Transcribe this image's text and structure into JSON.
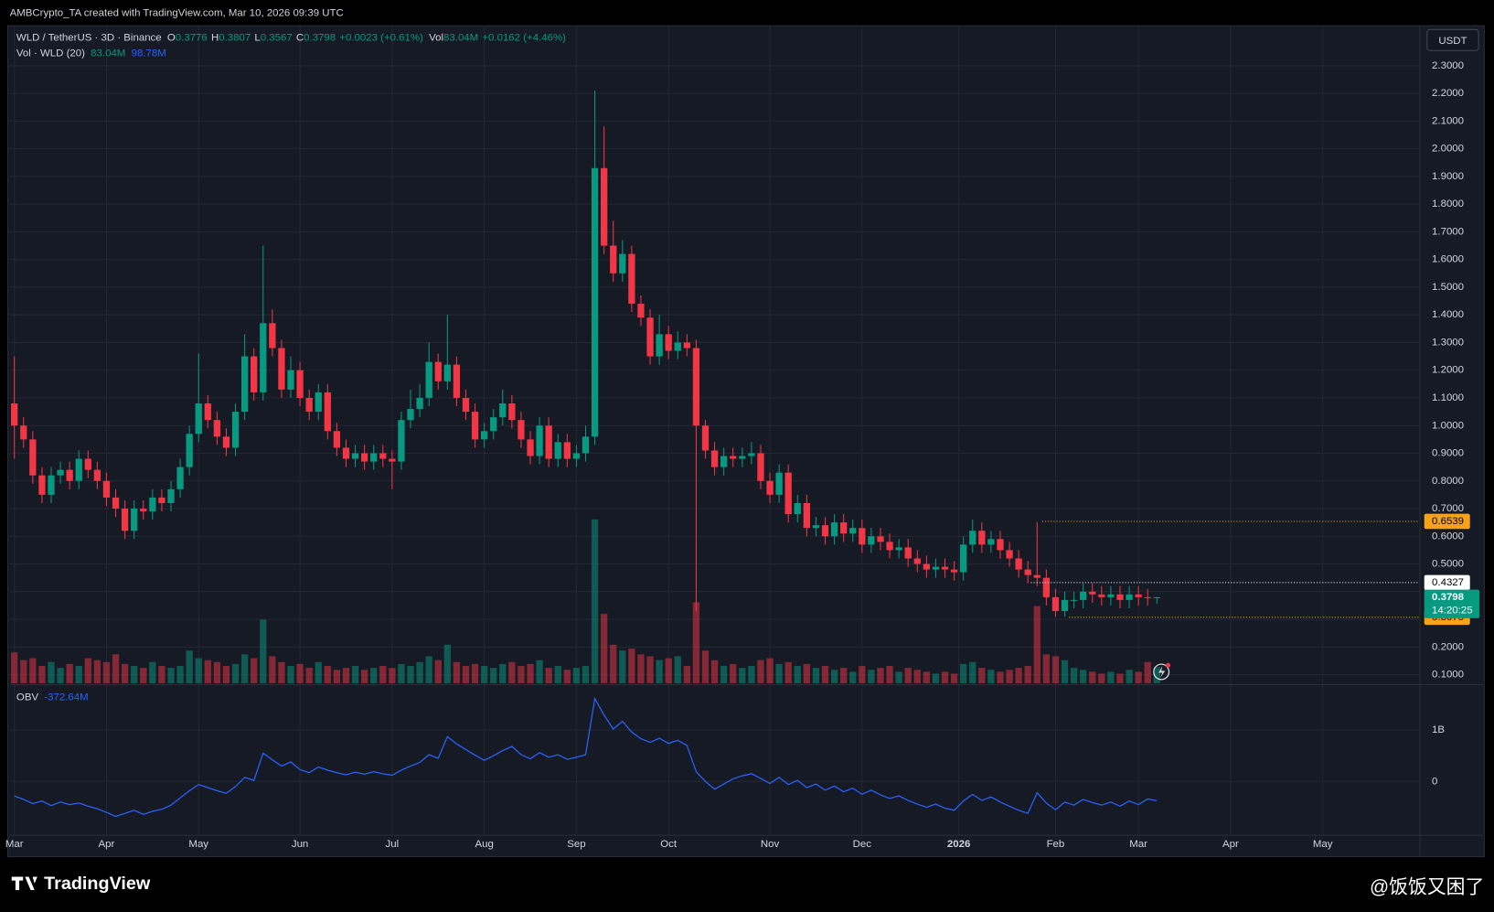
{
  "header": {
    "attribution": "AMBCrypto_TA created with TradingView.com, Mar 10, 2026 09:39 UTC"
  },
  "chart_data": {
    "type": "candlestick",
    "symbol": "WLD / TetherUS · 3D · Binance",
    "currency": "USDT",
    "legend_labels": {
      "open": "O",
      "high": "H",
      "low": "L",
      "close": "C",
      "volume": "Vol"
    },
    "change": "+0.0023 (+0.61%)",
    "volume_label": "83.04M",
    "volume_change": "+0.0162 (+4.46%)",
    "volume_indicator": {
      "name": "Vol · WLD (20)",
      "value_label": "83.04M",
      "ma_label": "98.78M"
    },
    "countdown": "14:20:25",
    "up_color": "#089981",
    "down_color": "#f23645",
    "grid": true,
    "ylim": [
      0.069,
      2.441
    ],
    "yticks": [
      {
        "value": 0.1,
        "label": "0.1000"
      },
      {
        "value": 0.2,
        "label": "0.2000"
      },
      {
        "value": 0.3,
        "label": "0.3000"
      },
      {
        "value": 0.4,
        "label": "0.4000"
      },
      {
        "value": 0.5,
        "label": "0.5000"
      },
      {
        "value": 0.6,
        "label": "0.6000"
      },
      {
        "value": 0.7,
        "label": "0.7000"
      },
      {
        "value": 0.8,
        "label": "0.8000"
      },
      {
        "value": 0.9,
        "label": "0.9000"
      },
      {
        "value": 1.0,
        "label": "1.0000"
      },
      {
        "value": 1.1,
        "label": "1.1000"
      },
      {
        "value": 1.2,
        "label": "1.2000"
      },
      {
        "value": 1.3,
        "label": "1.3000"
      },
      {
        "value": 1.4,
        "label": "1.4000"
      },
      {
        "value": 1.5,
        "label": "1.5000"
      },
      {
        "value": 1.6,
        "label": "1.6000"
      },
      {
        "value": 1.7,
        "label": "1.7000"
      },
      {
        "value": 1.8,
        "label": "1.8000"
      },
      {
        "value": 1.9,
        "label": "1.9000"
      },
      {
        "value": 2.0,
        "label": "2.0000"
      },
      {
        "value": 2.1,
        "label": "2.1000"
      },
      {
        "value": 2.2,
        "label": "2.2000"
      },
      {
        "value": 2.3,
        "label": "2.3000"
      }
    ],
    "xlim": [
      -0.5,
      152.5
    ],
    "xticks": [
      {
        "value": 0,
        "label": "Mar"
      },
      {
        "value": 10,
        "label": "Apr"
      },
      {
        "value": 20,
        "label": "May"
      },
      {
        "value": 31,
        "label": "Jun"
      },
      {
        "value": 41,
        "label": "Jul"
      },
      {
        "value": 51,
        "label": "Aug"
      },
      {
        "value": 61,
        "label": "Sep"
      },
      {
        "value": 71,
        "label": "Oct"
      },
      {
        "value": 82,
        "label": "Nov"
      },
      {
        "value": 92,
        "label": "Dec"
      },
      {
        "value": 102.5,
        "label": "2026"
      },
      {
        "value": 113,
        "label": "Feb"
      },
      {
        "value": 122,
        "label": "Mar"
      },
      {
        "value": 132,
        "label": "Apr"
      },
      {
        "value": 142,
        "label": "May"
      }
    ],
    "open": [
      1.08,
      1.0,
      0.95,
      0.82,
      0.75,
      0.82,
      0.84,
      0.8,
      0.88,
      0.84,
      0.8,
      0.74,
      0.7,
      0.62,
      0.7,
      0.69,
      0.74,
      0.72,
      0.77,
      0.85,
      0.97,
      1.08,
      1.02,
      0.96,
      0.92,
      1.05,
      1.25,
      1.12,
      1.37,
      1.28,
      1.13,
      1.2,
      1.1,
      1.05,
      1.12,
      0.98,
      0.92,
      0.88,
      0.9,
      0.87,
      0.9,
      0.88,
      0.87,
      1.02,
      1.06,
      1.1,
      1.23,
      1.16,
      1.22,
      1.1,
      1.05,
      0.95,
      0.98,
      1.03,
      1.08,
      1.02,
      0.95,
      0.89,
      1.0,
      0.88,
      0.94,
      0.88,
      0.9,
      0.96,
      1.93,
      1.65,
      1.55,
      1.62,
      1.44,
      1.39,
      1.25,
      1.33,
      1.27,
      1.3,
      1.28,
      1.0,
      0.91,
      0.85,
      0.89,
      0.88,
      0.89,
      0.9,
      0.8,
      0.75,
      0.83,
      0.68,
      0.72,
      0.63,
      0.64,
      0.6,
      0.65,
      0.61,
      0.63,
      0.57,
      0.6,
      0.58,
      0.55,
      0.56,
      0.52,
      0.5,
      0.48,
      0.49,
      0.48,
      0.47,
      0.57,
      0.62,
      0.57,
      0.59,
      0.55,
      0.52,
      0.48,
      0.46,
      0.45,
      0.38,
      0.33,
      0.37,
      0.37,
      0.4,
      0.39,
      0.38,
      0.39,
      0.37,
      0.39,
      0.38,
      0.3776
    ],
    "high": [
      1.25,
      1.03,
      0.98,
      0.85,
      0.85,
      0.87,
      0.87,
      0.91,
      0.91,
      0.87,
      0.83,
      0.77,
      0.73,
      0.73,
      0.73,
      0.77,
      0.77,
      0.8,
      0.88,
      1.0,
      1.26,
      1.11,
      1.05,
      0.99,
      1.08,
      1.33,
      1.28,
      1.65,
      1.42,
      1.31,
      1.25,
      1.23,
      1.13,
      1.15,
      1.15,
      1.01,
      0.95,
      0.93,
      0.93,
      0.93,
      0.93,
      0.91,
      1.05,
      1.13,
      1.15,
      1.3,
      1.26,
      1.4,
      1.25,
      1.13,
      1.08,
      1.01,
      1.06,
      1.13,
      1.11,
      1.05,
      0.98,
      1.03,
      1.03,
      0.97,
      0.97,
      0.93,
      1.0,
      2.21,
      2.08,
      1.74,
      1.67,
      1.65,
      1.47,
      1.42,
      1.4,
      1.36,
      1.34,
      1.33,
      1.31,
      1.02,
      0.94,
      0.92,
      0.92,
      0.92,
      0.94,
      0.93,
      0.83,
      0.86,
      0.86,
      0.75,
      0.75,
      0.67,
      0.67,
      0.68,
      0.68,
      0.66,
      0.66,
      0.63,
      0.63,
      0.61,
      0.59,
      0.59,
      0.55,
      0.53,
      0.52,
      0.52,
      0.51,
      0.6,
      0.66,
      0.65,
      0.62,
      0.62,
      0.58,
      0.55,
      0.51,
      0.65,
      0.48,
      0.41,
      0.4,
      0.4,
      0.43,
      0.43,
      0.42,
      0.42,
      0.42,
      0.42,
      0.42,
      0.41,
      0.3807
    ],
    "low": [
      0.88,
      0.92,
      0.79,
      0.72,
      0.72,
      0.79,
      0.77,
      0.77,
      0.81,
      0.77,
      0.71,
      0.67,
      0.59,
      0.59,
      0.66,
      0.66,
      0.69,
      0.69,
      0.74,
      0.82,
      0.94,
      0.99,
      0.93,
      0.89,
      0.89,
      1.02,
      1.09,
      1.09,
      1.25,
      1.1,
      1.1,
      1.07,
      1.02,
      1.02,
      0.95,
      0.89,
      0.85,
      0.85,
      0.84,
      0.84,
      0.85,
      0.77,
      0.84,
      0.99,
      1.03,
      1.07,
      1.13,
      1.13,
      1.07,
      1.02,
      0.92,
      0.92,
      0.95,
      1.0,
      0.99,
      0.92,
      0.86,
      0.86,
      0.85,
      0.85,
      0.85,
      0.85,
      0.87,
      0.93,
      1.62,
      1.52,
      1.52,
      1.41,
      1.36,
      1.22,
      1.22,
      1.24,
      1.24,
      1.25,
      0.33,
      0.88,
      0.82,
      0.82,
      0.85,
      0.85,
      0.86,
      0.77,
      0.72,
      0.72,
      0.65,
      0.65,
      0.6,
      0.6,
      0.57,
      0.57,
      0.58,
      0.58,
      0.54,
      0.54,
      0.55,
      0.52,
      0.52,
      0.49,
      0.47,
      0.45,
      0.45,
      0.45,
      0.44,
      0.44,
      0.54,
      0.54,
      0.54,
      0.52,
      0.49,
      0.45,
      0.43,
      0.42,
      0.35,
      0.31,
      0.31,
      0.34,
      0.34,
      0.36,
      0.35,
      0.35,
      0.34,
      0.34,
      0.35,
      0.35,
      0.3567
    ],
    "close": [
      1.0,
      0.95,
      0.82,
      0.75,
      0.82,
      0.84,
      0.8,
      0.88,
      0.84,
      0.8,
      0.74,
      0.7,
      0.62,
      0.7,
      0.69,
      0.74,
      0.72,
      0.77,
      0.85,
      0.97,
      1.08,
      1.02,
      0.96,
      0.92,
      1.05,
      1.25,
      1.12,
      1.37,
      1.28,
      1.13,
      1.2,
      1.1,
      1.05,
      1.12,
      0.98,
      0.92,
      0.88,
      0.9,
      0.87,
      0.9,
      0.88,
      0.87,
      1.02,
      1.06,
      1.1,
      1.23,
      1.16,
      1.22,
      1.1,
      1.05,
      0.95,
      0.98,
      1.03,
      1.08,
      1.02,
      0.95,
      0.89,
      1.0,
      0.88,
      0.94,
      0.88,
      0.9,
      0.96,
      1.93,
      1.65,
      1.55,
      1.62,
      1.44,
      1.39,
      1.25,
      1.33,
      1.27,
      1.3,
      1.28,
      1.0,
      0.91,
      0.85,
      0.89,
      0.88,
      0.89,
      0.9,
      0.8,
      0.75,
      0.83,
      0.68,
      0.72,
      0.63,
      0.64,
      0.6,
      0.65,
      0.61,
      0.63,
      0.57,
      0.6,
      0.58,
      0.55,
      0.56,
      0.52,
      0.5,
      0.48,
      0.49,
      0.48,
      0.47,
      0.57,
      0.62,
      0.57,
      0.59,
      0.55,
      0.52,
      0.48,
      0.46,
      0.45,
      0.38,
      0.33,
      0.37,
      0.37,
      0.4,
      0.39,
      0.38,
      0.39,
      0.37,
      0.39,
      0.38,
      0.3776,
      0.3798
    ],
    "volume": [
      160,
      120,
      130,
      90,
      110,
      80,
      100,
      90,
      130,
      120,
      110,
      150,
      100,
      90,
      80,
      110,
      90,
      80,
      90,
      170,
      130,
      120,
      110,
      90,
      100,
      150,
      130,
      330,
      140,
      110,
      90,
      100,
      80,
      110,
      90,
      70,
      80,
      90,
      70,
      80,
      90,
      80,
      100,
      90,
      110,
      140,
      120,
      200,
      110,
      90,
      100,
      90,
      80,
      100,
      110,
      90,
      100,
      120,
      80,
      90,
      70,
      80,
      90,
      850,
      360,
      200,
      170,
      180,
      150,
      140,
      120,
      130,
      140,
      90,
      420,
      170,
      120,
      90,
      100,
      80,
      90,
      120,
      130,
      100,
      110,
      90,
      100,
      80,
      90,
      70,
      80,
      60,
      90,
      70,
      80,
      90,
      60,
      80,
      70,
      60,
      50,
      60,
      50,
      100,
      110,
      80,
      70,
      60,
      70,
      80,
      90,
      400,
      150,
      140,
      120,
      80,
      70,
      60,
      50,
      60,
      50,
      70,
      60,
      110,
      83.04
    ],
    "levels": [
      {
        "value": 0.6539,
        "color": "#f7a21b"
      },
      {
        "value": 0.4327,
        "color": "#ffffff"
      },
      {
        "value": 0.3075,
        "color": "#f7a21b"
      }
    ],
    "obv": {
      "name": "OBV",
      "value_label": "-372.64M",
      "color": "#2962ff",
      "ylim": [
        -1037,
        1815
      ],
      "yticks": [
        {
          "value": 1000,
          "label": "1B"
        },
        0
      ],
      "values": [
        -280,
        -350,
        -430,
        -380,
        -470,
        -400,
        -450,
        -420,
        -480,
        -530,
        -600,
        -680,
        -620,
        -560,
        -640,
        -580,
        -540,
        -460,
        -320,
        -180,
        -60,
        -120,
        -180,
        -230,
        -100,
        80,
        20,
        550,
        420,
        300,
        380,
        230,
        170,
        280,
        220,
        170,
        130,
        180,
        140,
        190,
        150,
        120,
        220,
        300,
        370,
        520,
        450,
        870,
        730,
        620,
        510,
        410,
        500,
        600,
        680,
        520,
        440,
        560,
        470,
        520,
        430,
        470,
        520,
        1610,
        1290,
        1020,
        1170,
        960,
        830,
        760,
        840,
        740,
        800,
        700,
        190,
        0,
        -150,
        -50,
        50,
        110,
        150,
        60,
        -40,
        80,
        -60,
        20,
        -120,
        -50,
        -170,
        -90,
        -200,
        -130,
        -250,
        -170,
        -260,
        -330,
        -280,
        -370,
        -440,
        -500,
        -440,
        -520,
        -560,
        -380,
        -250,
        -370,
        -300,
        -400,
        -480,
        -560,
        -620,
        -220,
        -420,
        -550,
        -400,
        -460,
        -350,
        -410,
        -460,
        -400,
        -480,
        -380,
        -450,
        -340,
        -372.64
      ]
    }
  },
  "footer": {
    "brand": "TradingView",
    "watermark": "@饭饭又困了"
  }
}
